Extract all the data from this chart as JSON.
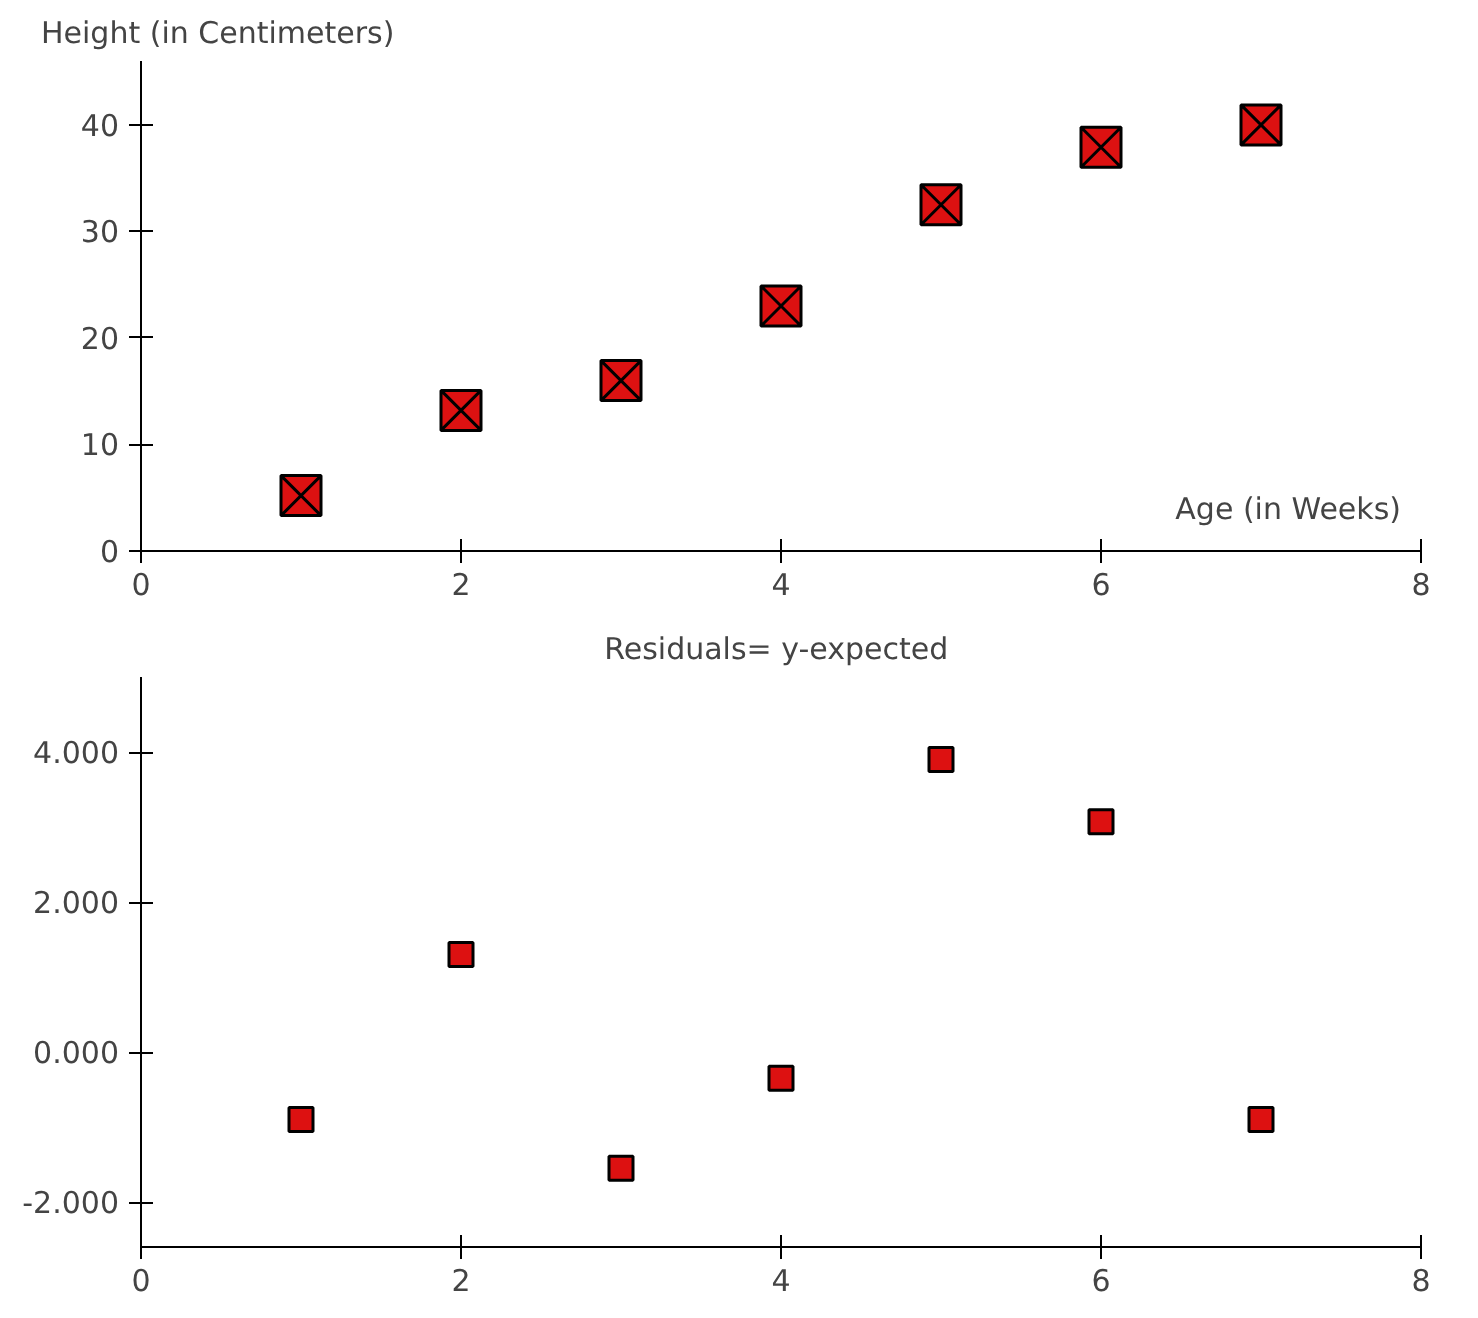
{
  "chart_data": [
    {
      "type": "scatter",
      "xlabel": "Age (in Weeks)",
      "ylabel": "Height (in Centimeters)",
      "x": [
        1,
        2,
        3,
        4,
        5,
        6,
        7
      ],
      "series": [
        {
          "color": "#dd1111",
          "values": [
            5.2,
            13.2,
            16,
            23,
            32.5,
            37.9,
            40
          ]
        }
      ],
      "xlim": [
        0,
        8
      ],
      "xticks": [
        0,
        2,
        4,
        6,
        8
      ],
      "ylim": [
        0,
        46
      ],
      "yticks": [
        0,
        10,
        20,
        30,
        40
      ],
      "marker": "cross",
      "grid": false
    },
    {
      "type": "scatter",
      "title": "Residuals=  y-expected",
      "x": [
        1,
        2,
        3,
        4,
        5,
        6,
        7
      ],
      "series": [
        {
          "color": "#dd1111",
          "values": [
            -0.9,
            1.3,
            -1.55,
            -0.35,
            3.9,
            3.07,
            -0.9
          ]
        }
      ],
      "xlim": [
        0,
        8
      ],
      "xticks": [
        0,
        2,
        4,
        6,
        8
      ],
      "ylim": [
        -2.6,
        5
      ],
      "yticks": [
        {
          "value": -2,
          "label": "-2.000"
        },
        {
          "value": 0,
          "label": "0.000"
        },
        {
          "value": 2,
          "label": "2.000"
        },
        {
          "value": 4,
          "label": "4.000"
        }
      ],
      "marker": "square",
      "grid": false
    }
  ]
}
